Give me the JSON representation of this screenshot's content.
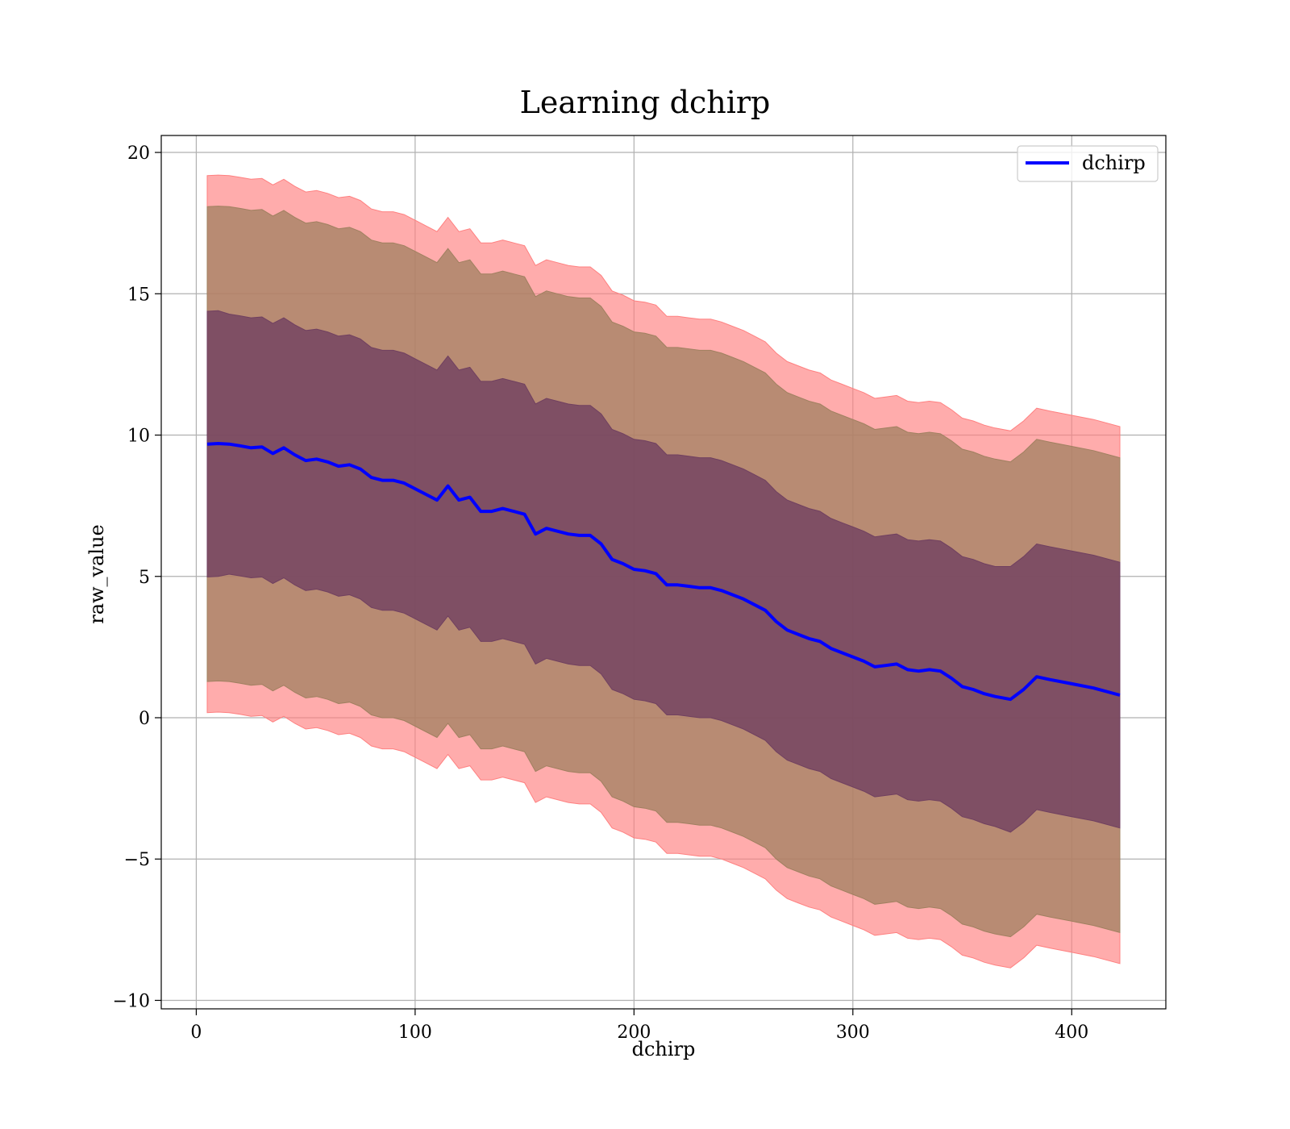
{
  "chart_data": {
    "type": "area",
    "title": "Learning dchirp",
    "xlabel": "dchirp",
    "ylabel": "raw_value",
    "xlim": [
      -16,
      443
    ],
    "ylim": [
      -10.3,
      20.6
    ],
    "xticks": [
      0,
      100,
      200,
      300,
      400
    ],
    "yticks": [
      -10,
      -5,
      0,
      5,
      10,
      15,
      20
    ],
    "xtick_labels": [
      "0",
      "100",
      "200",
      "300",
      "400"
    ],
    "ytick_labels": [
      "−10",
      "−5",
      "0",
      "5",
      "10",
      "15",
      "20"
    ],
    "grid": true,
    "legend": {
      "position": "top-right",
      "entries": [
        "dchirp"
      ]
    },
    "colors": {
      "line": "#0000ff",
      "outer_band": "#ff8080",
      "middle_band": "#a08060",
      "inner_band": "#704060"
    },
    "x": [
      5,
      10,
      15,
      20,
      25,
      30,
      35,
      40,
      45,
      50,
      55,
      60,
      65,
      70,
      75,
      80,
      85,
      90,
      95,
      100,
      105,
      110,
      115,
      120,
      125,
      130,
      135,
      140,
      145,
      150,
      155,
      160,
      165,
      170,
      175,
      180,
      185,
      190,
      195,
      200,
      205,
      210,
      215,
      220,
      225,
      230,
      235,
      240,
      245,
      250,
      255,
      260,
      265,
      270,
      275,
      280,
      285,
      290,
      295,
      300,
      305,
      310,
      315,
      320,
      325,
      330,
      335,
      340,
      345,
      350,
      355,
      360,
      365,
      372,
      378,
      384,
      390,
      400,
      410,
      422
    ],
    "series": [
      {
        "name": "dchirp",
        "values": [
          9.68,
          9.7,
          9.68,
          9.62,
          9.55,
          9.58,
          9.35,
          9.55,
          9.3,
          9.1,
          9.15,
          9.05,
          8.9,
          8.95,
          8.8,
          8.5,
          8.4,
          8.4,
          8.3,
          8.1,
          7.9,
          7.7,
          8.2,
          7.7,
          7.8,
          7.3,
          7.3,
          7.4,
          7.3,
          7.2,
          6.5,
          6.7,
          6.6,
          6.5,
          6.45,
          6.45,
          6.15,
          5.6,
          5.45,
          5.25,
          5.2,
          5.1,
          4.7,
          4.7,
          4.65,
          4.6,
          4.6,
          4.5,
          4.35,
          4.2,
          4.0,
          3.8,
          3.4,
          3.1,
          2.95,
          2.8,
          2.7,
          2.45,
          2.3,
          2.15,
          2.0,
          1.8,
          1.85,
          1.9,
          1.7,
          1.65,
          1.7,
          1.65,
          1.4,
          1.1,
          1.0,
          0.85,
          0.75,
          0.65,
          1.0,
          1.45,
          1.35,
          1.2,
          1.05,
          0.8
        ]
      }
    ],
    "bands": [
      {
        "sigma": 1,
        "half_width": [
          4.7,
          4.7,
          4.6,
          4.6,
          4.6,
          4.6,
          4.6,
          4.6,
          4.6,
          4.6,
          4.6,
          4.6,
          4.6,
          4.6,
          4.6,
          4.6,
          4.6,
          4.6,
          4.6,
          4.6,
          4.6,
          4.6,
          4.6,
          4.6,
          4.6,
          4.6,
          4.6,
          4.6,
          4.6,
          4.6,
          4.6,
          4.6,
          4.6,
          4.6,
          4.6,
          4.6,
          4.6,
          4.6,
          4.6,
          4.6,
          4.6,
          4.6,
          4.6,
          4.6,
          4.6,
          4.6,
          4.6,
          4.6,
          4.6,
          4.6,
          4.6,
          4.6,
          4.6,
          4.6,
          4.6,
          4.6,
          4.6,
          4.6,
          4.6,
          4.6,
          4.6,
          4.6,
          4.6,
          4.6,
          4.6,
          4.6,
          4.6,
          4.6,
          4.6,
          4.6,
          4.6,
          4.6,
          4.6,
          4.7,
          4.7,
          4.7,
          4.7,
          4.7,
          4.7,
          4.7
        ]
      },
      {
        "sigma": 2,
        "half_width": [
          8.4,
          8.4,
          8.4,
          8.4,
          8.4,
          8.4,
          8.4,
          8.4,
          8.4,
          8.4,
          8.4,
          8.4,
          8.4,
          8.4,
          8.4,
          8.4,
          8.4,
          8.4,
          8.4,
          8.4,
          8.4,
          8.4,
          8.4,
          8.4,
          8.4,
          8.4,
          8.4,
          8.4,
          8.4,
          8.4,
          8.4,
          8.4,
          8.4,
          8.4,
          8.4,
          8.4,
          8.4,
          8.4,
          8.4,
          8.4,
          8.4,
          8.4,
          8.4,
          8.4,
          8.4,
          8.4,
          8.4,
          8.4,
          8.4,
          8.4,
          8.4,
          8.4,
          8.4,
          8.4,
          8.4,
          8.4,
          8.4,
          8.4,
          8.4,
          8.4,
          8.4,
          8.4,
          8.4,
          8.4,
          8.4,
          8.4,
          8.4,
          8.4,
          8.4,
          8.4,
          8.4,
          8.4,
          8.4,
          8.4,
          8.4,
          8.4,
          8.4,
          8.4,
          8.4,
          8.4
        ]
      },
      {
        "sigma": 3,
        "half_width": [
          9.5,
          9.5,
          9.5,
          9.5,
          9.5,
          9.5,
          9.5,
          9.5,
          9.5,
          9.5,
          9.5,
          9.5,
          9.5,
          9.5,
          9.5,
          9.5,
          9.5,
          9.5,
          9.5,
          9.5,
          9.5,
          9.5,
          9.5,
          9.5,
          9.5,
          9.5,
          9.5,
          9.5,
          9.5,
          9.5,
          9.5,
          9.5,
          9.5,
          9.5,
          9.5,
          9.5,
          9.5,
          9.5,
          9.5,
          9.5,
          9.5,
          9.5,
          9.5,
          9.5,
          9.5,
          9.5,
          9.5,
          9.5,
          9.5,
          9.5,
          9.5,
          9.5,
          9.5,
          9.5,
          9.5,
          9.5,
          9.5,
          9.5,
          9.5,
          9.5,
          9.5,
          9.5,
          9.5,
          9.5,
          9.5,
          9.5,
          9.5,
          9.5,
          9.5,
          9.5,
          9.5,
          9.5,
          9.5,
          9.5,
          9.5,
          9.5,
          9.5,
          9.5,
          9.5,
          9.5
        ]
      }
    ]
  }
}
